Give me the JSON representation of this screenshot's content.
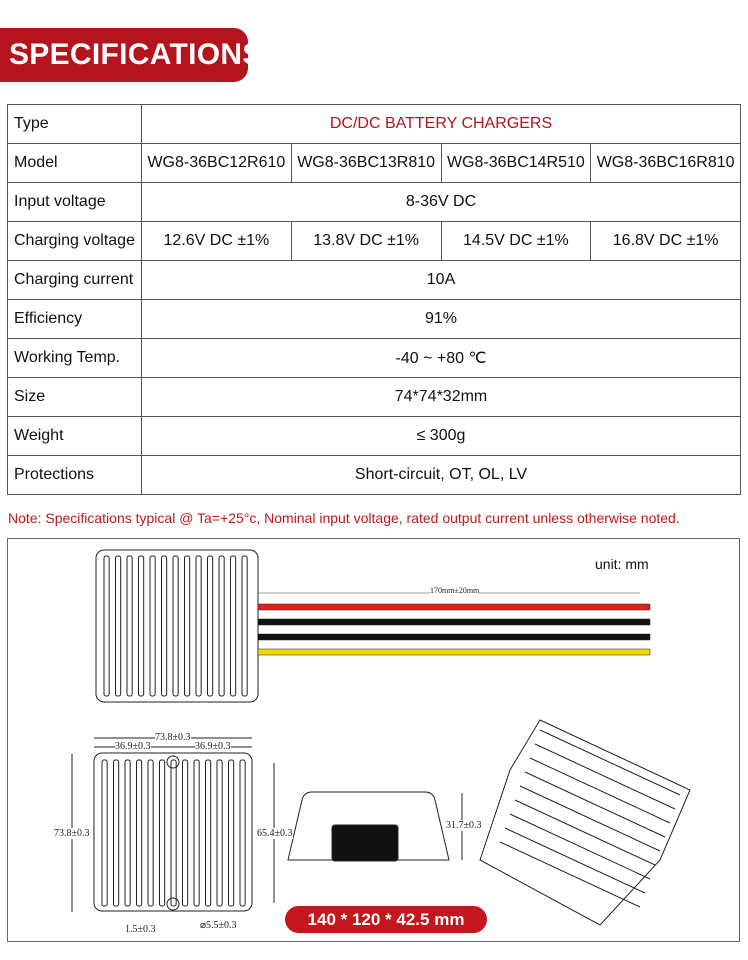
{
  "header": {
    "title": "SPECIFICATIONS"
  },
  "table": {
    "rows": [
      {
        "label": "Type",
        "value": "DC/DC BATTERY CHARGERS"
      },
      {
        "label": "Model",
        "values": [
          "WG8-36BC12R610",
          "WG8-36BC13R810",
          "WG8-36BC14R510",
          "WG8-36BC16R810"
        ]
      },
      {
        "label": "Input voltage",
        "value": "8-36V DC"
      },
      {
        "label": "Charging voltage",
        "values": [
          "12.6V DC ±1%",
          "13.8V DC ±1%",
          "14.5V DC ±1%",
          "16.8V DC ±1%"
        ]
      },
      {
        "label": "Charging current",
        "value": "10A"
      },
      {
        "label": "Efficiency",
        "value": "91%"
      },
      {
        "label": "Working Temp.",
        "value": "-40 ~ +80 ℃"
      },
      {
        "label": "Size",
        "value": "74*74*32mm"
      },
      {
        "label": "Weight",
        "value": "≤ 300g"
      },
      {
        "label": "Protections",
        "value": "Short-circuit, OT, OL, LV"
      }
    ]
  },
  "note": "Note: Specifications typical @ Ta=+25°c, Nominal input voltage, rated output current unless otherwise noted.",
  "diagram": {
    "unit": "unit: mm",
    "wire_length": "170mm±20mm",
    "width": "73.8±0.3",
    "half_width": "36.9±0.3",
    "height": "73.8±0.3",
    "inner_height": "65.4±0.3",
    "side_height": "31.7±0.3",
    "edge": "1.5±0.3",
    "hole": "⌀5.5±0.3",
    "package_size": "140 * 120 * 42.5 mm",
    "wire_colors": [
      "#e0201c",
      "#111111",
      "#111111",
      "#f2d600"
    ]
  },
  "colors": {
    "accent": "#b5141e"
  }
}
